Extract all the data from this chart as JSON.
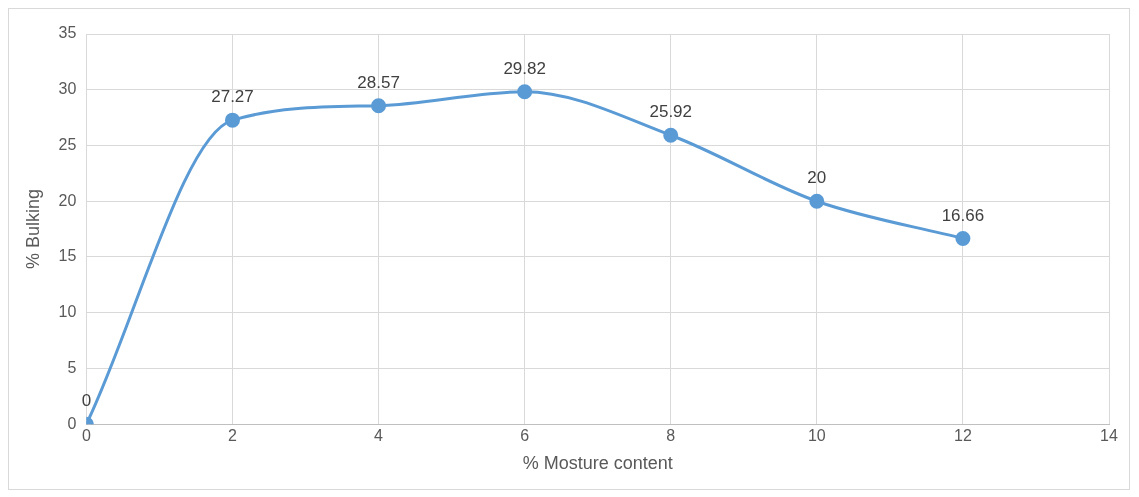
{
  "chart_data": {
    "type": "line",
    "xlabel": "% Mosture content",
    "ylabel": "% Bulking",
    "x": [
      0,
      2,
      4,
      6,
      8,
      10,
      12
    ],
    "series": [
      {
        "color": "#5b9bd5",
        "values": [
          0,
          27.27,
          28.57,
          29.82,
          25.92,
          20,
          16.66
        ]
      }
    ],
    "xlim": [
      0,
      14
    ],
    "xticks": [
      0,
      2,
      4,
      6,
      8,
      10,
      12,
      14
    ],
    "ylim": [
      0,
      35
    ],
    "yticks": [
      0,
      5,
      10,
      15,
      20,
      25,
      30,
      35
    ],
    "grid": true,
    "legend": false,
    "marker": "circle",
    "line_style": "solid",
    "data_labels": true
  }
}
